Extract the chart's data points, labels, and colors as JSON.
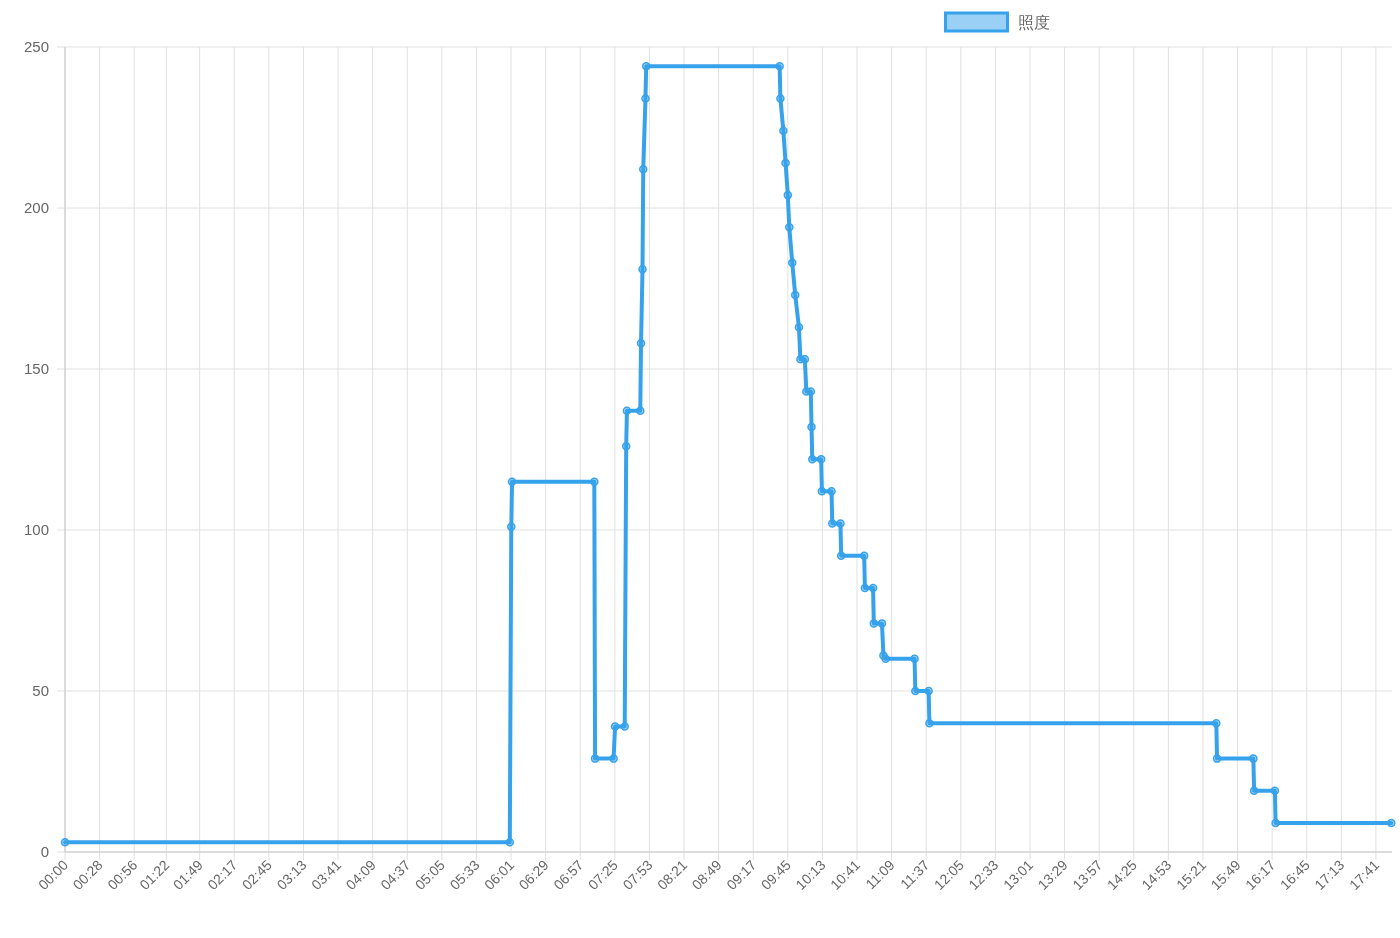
{
  "chart_data": {
    "type": "line",
    "x": [
      0,
      6.0,
      6.02,
      6.03,
      7.14,
      7.15,
      7.4,
      7.42,
      7.55,
      7.57,
      7.58,
      7.76,
      7.77,
      7.79,
      7.8,
      7.83,
      7.84,
      9.64,
      9.65,
      9.69,
      9.72,
      9.75,
      9.77,
      9.81,
      9.85,
      9.9,
      9.92,
      9.98,
      10.0,
      10.06,
      10.07,
      10.08,
      10.2,
      10.21,
      10.34,
      10.35,
      10.46,
      10.47,
      10.78,
      10.79,
      10.9,
      10.91,
      11.02,
      11.04,
      11.07,
      11.46,
      11.47,
      11.65,
      11.66,
      15.53,
      15.54,
      16.03,
      16.04,
      16.32,
      16.33,
      17.89
    ],
    "series": [
      {
        "name": "照度",
        "color": "#36a2eb",
        "values": [
          3,
          3,
          101,
          115,
          115,
          29,
          29,
          39,
          39,
          126,
          137,
          137,
          158,
          181,
          212,
          234,
          244,
          244,
          234,
          224,
          214,
          204,
          194,
          183,
          173,
          163,
          153,
          153,
          143,
          143,
          132,
          122,
          122,
          112,
          112,
          102,
          102,
          92,
          92,
          82,
          82,
          71,
          71,
          61,
          60,
          60,
          50,
          50,
          40,
          40,
          29,
          29,
          19,
          19,
          9,
          9
        ]
      }
    ],
    "xlim": [
      0,
      17.9
    ],
    "xticks": [
      {
        "value": 0,
        "label": "00:00"
      },
      {
        "value": 0.4667,
        "label": "00:28"
      },
      {
        "value": 0.9333,
        "label": "00:56"
      },
      {
        "value": 1.3667,
        "label": "01:22"
      },
      {
        "value": 1.8167,
        "label": "01:49"
      },
      {
        "value": 2.2833,
        "label": "02:17"
      },
      {
        "value": 2.75,
        "label": "02:45"
      },
      {
        "value": 3.2167,
        "label": "03:13"
      },
      {
        "value": 3.6833,
        "label": "03:41"
      },
      {
        "value": 4.15,
        "label": "04:09"
      },
      {
        "value": 4.6167,
        "label": "04:37"
      },
      {
        "value": 5.0833,
        "label": "05:05"
      },
      {
        "value": 5.55,
        "label": "05:33"
      },
      {
        "value": 6.0167,
        "label": "06:01"
      },
      {
        "value": 6.4833,
        "label": "06:29"
      },
      {
        "value": 6.95,
        "label": "06:57"
      },
      {
        "value": 7.4167,
        "label": "07:25"
      },
      {
        "value": 7.8833,
        "label": "07:53"
      },
      {
        "value": 8.35,
        "label": "08:21"
      },
      {
        "value": 8.8167,
        "label": "08:49"
      },
      {
        "value": 9.2833,
        "label": "09:17"
      },
      {
        "value": 9.75,
        "label": "09:45"
      },
      {
        "value": 10.2167,
        "label": "10:13"
      },
      {
        "value": 10.6833,
        "label": "10:41"
      },
      {
        "value": 11.15,
        "label": "11:09"
      },
      {
        "value": 11.6167,
        "label": "11:37"
      },
      {
        "value": 12.0833,
        "label": "12:05"
      },
      {
        "value": 12.55,
        "label": "12:33"
      },
      {
        "value": 13.0167,
        "label": "13:01"
      },
      {
        "value": 13.4833,
        "label": "13:29"
      },
      {
        "value": 13.95,
        "label": "13:57"
      },
      {
        "value": 14.4167,
        "label": "14:25"
      },
      {
        "value": 14.8833,
        "label": "14:53"
      },
      {
        "value": 15.35,
        "label": "15:21"
      },
      {
        "value": 15.8167,
        "label": "15:49"
      },
      {
        "value": 16.2833,
        "label": "16:17"
      },
      {
        "value": 16.75,
        "label": "16:45"
      },
      {
        "value": 17.2167,
        "label": "17:13"
      },
      {
        "value": 17.6833,
        "label": "17:41"
      }
    ],
    "ylim": [
      0,
      250
    ],
    "yticks": [
      0,
      50,
      100,
      150,
      200,
      250
    ],
    "grid": true,
    "legend": "top",
    "marker": "circle",
    "line_style": "solid"
  }
}
